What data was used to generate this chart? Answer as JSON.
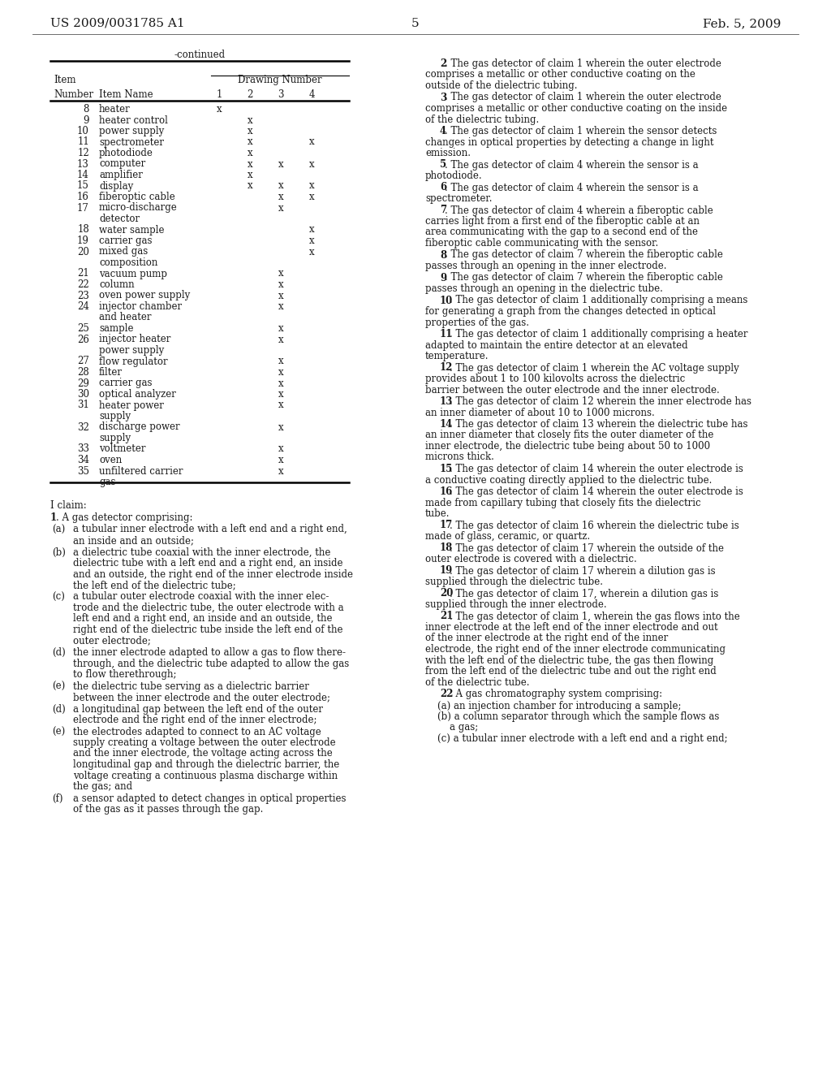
{
  "bg_color": "#ffffff",
  "page_number": "5",
  "header_left": "US 2009/0031785 A1",
  "header_right": "Feb. 5, 2009",
  "table_title": "-continued",
  "table_rows": [
    [
      "8",
      "heater",
      "x",
      "",
      "",
      ""
    ],
    [
      "9",
      "heater control",
      "",
      "x",
      "",
      ""
    ],
    [
      "10",
      "power supply",
      "",
      "x",
      "",
      ""
    ],
    [
      "11",
      "spectrometer",
      "",
      "x",
      "",
      "x"
    ],
    [
      "12",
      "photodiode",
      "",
      "x",
      "",
      ""
    ],
    [
      "13",
      "computer",
      "",
      "x",
      "x",
      "x"
    ],
    [
      "14",
      "amplifier",
      "",
      "x",
      "",
      ""
    ],
    [
      "15",
      "display",
      "",
      "x",
      "x",
      "x"
    ],
    [
      "16",
      "fiberoptic cable",
      "",
      "",
      "x",
      "x"
    ],
    [
      "17",
      "micro-discharge\ndetector",
      "",
      "",
      "x",
      ""
    ],
    [
      "18",
      "water sample",
      "",
      "",
      "",
      "x"
    ],
    [
      "19",
      "carrier gas",
      "",
      "",
      "",
      "x"
    ],
    [
      "20",
      "mixed gas\ncomposition",
      "",
      "",
      "",
      "x"
    ],
    [
      "21",
      "vacuum pump",
      "",
      "",
      "x",
      ""
    ],
    [
      "22",
      "column",
      "",
      "",
      "x",
      ""
    ],
    [
      "23",
      "oven power supply",
      "",
      "",
      "x",
      ""
    ],
    [
      "24",
      "injector chamber\nand heater",
      "",
      "",
      "x",
      ""
    ],
    [
      "25",
      "sample",
      "",
      "",
      "x",
      ""
    ],
    [
      "26",
      "injector heater\npower supply",
      "",
      "",
      "x",
      ""
    ],
    [
      "27",
      "flow regulator",
      "",
      "",
      "x",
      ""
    ],
    [
      "28",
      "filter",
      "",
      "",
      "x",
      ""
    ],
    [
      "29",
      "carrier gas",
      "",
      "",
      "x",
      ""
    ],
    [
      "30",
      "optical analyzer",
      "",
      "",
      "x",
      ""
    ],
    [
      "31",
      "heater power\nsupply",
      "",
      "",
      "x",
      ""
    ],
    [
      "32",
      "discharge power\nsupply",
      "",
      "",
      "x",
      ""
    ],
    [
      "33",
      "voltmeter",
      "",
      "",
      "x",
      ""
    ],
    [
      "34",
      "oven",
      "",
      "",
      "x",
      ""
    ],
    [
      "35",
      "unfiltered carrier\ngas",
      "",
      "",
      "x",
      ""
    ]
  ],
  "right_claims": [
    {
      "num": "2",
      "text": "The gas detector of claim 1 wherein the outer electrode comprises a metallic or other conductive coating on the outside of the dielectric tubing."
    },
    {
      "num": "3",
      "text": "The gas detector of claim 1 wherein the outer electrode comprises a metallic or other conductive coating on the inside of the dielectric tubing."
    },
    {
      "num": "4",
      "text": "The gas detector of claim 1 wherein the sensor detects changes in optical properties by detecting a change in light emission."
    },
    {
      "num": "5",
      "text": "The gas detector of claim 4 wherein the sensor is a photodiode."
    },
    {
      "num": "6",
      "text": "The gas detector of claim 4 wherein the sensor is a spectrometer."
    },
    {
      "num": "7",
      "text": "The gas detector of claim 4 wherein a fiberoptic cable carries light from a first end of the fiberoptic cable at an area communicating with the gap to a second end of the fiberoptic cable communicating with the sensor."
    },
    {
      "num": "8",
      "text": "The gas detector of claim 7 wherein the fiberoptic cable passes through an opening in the inner electrode."
    },
    {
      "num": "9",
      "text": "The gas detector of claim 7 wherein the fiberoptic cable passes through an opening in the dielectric tube."
    },
    {
      "num": "10",
      "text": "The gas detector of claim 1 additionally comprising a means for generating a graph from the changes detected in optical properties of the gas."
    },
    {
      "num": "11",
      "text": "The gas detector of claim 1 additionally comprising a heater adapted to maintain the entire detector at an elevated temperature."
    },
    {
      "num": "12",
      "text": "The gas detector of claim 1 wherein the AC voltage supply provides about 1 to 100 kilovolts across the dielectric barrier between the outer electrode and the inner electrode."
    },
    {
      "num": "13",
      "text": "The gas detector of claim 12 wherein the inner electrode has an inner diameter of about 10 to 1000 microns."
    },
    {
      "num": "14",
      "text": "The gas detector of claim 13 wherein the dielectric tube has an inner diameter that closely fits the outer diameter of the inner electrode, the dielectric tube being about 50 to 1000 microns thick."
    },
    {
      "num": "15",
      "text": "The gas detector of claim 14 wherein the outer electrode is a conductive coating directly applied to the dielectric tube."
    },
    {
      "num": "16",
      "text": "The gas detector of claim 14 wherein the outer electrode is made from capillary tubing that closely fits the dielectric tube."
    },
    {
      "num": "17",
      "text": "The gas detector of claim 16 wherein the dielectric tube is made of glass, ceramic, or quartz."
    },
    {
      "num": "18",
      "text": "The gas detector of claim 17 wherein the outside of the outer electrode is covered with a dielectric."
    },
    {
      "num": "19",
      "text": "The gas detector of claim 17 wherein a dilution gas is supplied through the dielectric tube."
    },
    {
      "num": "20",
      "text": "The gas detector of claim 17, wherein a dilution gas is supplied through the inner electrode."
    },
    {
      "num": "21",
      "text": "The gas detector of claim 1, wherein the gas flows into the inner electrode at the left end of the inner electrode and out of the inner electrode at the right end of the inner electrode, the right end of the inner electrode communicating with the left end of the dielectric tube, the gas then flowing from the left end of the dielectric tube and out the right end of the dielectric tube."
    },
    {
      "num": "22",
      "text": "A gas chromatography system comprising:",
      "is_intro": true
    }
  ],
  "right_indent_items": [
    "(a) an injection chamber for introducing a sample;",
    "(b) a column separator through which the sample flows as\n    a gas;",
    "(c) a tubular inner electrode with a left end and a right end;"
  ],
  "left_claims_intro": "I claim:",
  "left_claim1": ". A gas detector comprising:",
  "left_claim_items": [
    [
      "(a)",
      "a tubular inner electrode with a left end and a right end,\nan inside and an outside;"
    ],
    [
      "(b)",
      "a dielectric tube coaxial with the inner electrode, the\ndielectric tube with a left end and a right end, an inside\nand an outside, the right end of the inner electrode inside\nthe left end of the dielectric tube;"
    ],
    [
      "(c)",
      "a tubular outer electrode coaxial with the inner elec-\ntrode and the dielectric tube, the outer electrode with a\nleft end and a right end, an inside and an outside, the\nright end of the dielectric tube inside the left end of the\nouter electrode;"
    ],
    [
      "(d)",
      "the inner electrode adapted to allow a gas to flow there-\nthrough, and the dielectric tube adapted to allow the gas\nto flow therethrough;"
    ],
    [
      "(e)",
      "the dielectric tube serving as a dielectric barrier\nbetween the inner electrode and the outer electrode;"
    ],
    [
      "(d)",
      "a longitudinal gap between the left end of the outer\nelectrode and the right end of the inner electrode;"
    ],
    [
      "(e)",
      "the electrodes adapted to connect to an AC voltage\nsupply creating a voltage between the outer electrode\nand the inner electrode, the voltage acting across the\nlongitudinal gap and through the dielectric barrier, the\nvoltage creating a continuous plasma discharge within\nthe gas; and"
    ],
    [
      "(f)",
      "a sensor adapted to detect changes in optical properties\nof the gas as it passes through the gap."
    ]
  ]
}
